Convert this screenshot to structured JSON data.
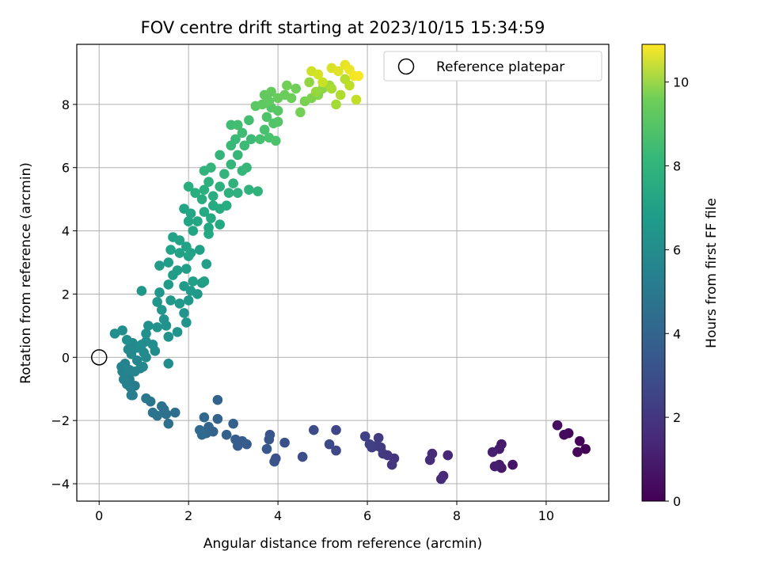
{
  "chart_data": {
    "type": "scatter",
    "title": "FOV centre drift starting at 2023/10/15 15:34:59",
    "xlabel": "Angular distance from reference (arcmin)",
    "ylabel": "Rotation from reference (arcmin)",
    "xlim": [
      -0.5,
      11.4
    ],
    "ylim": [
      -4.55,
      9.9
    ],
    "xticks": [
      0,
      2,
      4,
      6,
      8,
      10
    ],
    "yticks": [
      -4,
      -2,
      0,
      2,
      4,
      6,
      8
    ],
    "grid": true,
    "legend": {
      "position": "top-right",
      "entries": [
        "Reference platepar"
      ]
    },
    "reference_point": {
      "x": 0,
      "y": 0,
      "label": "Reference platepar"
    },
    "colorbar": {
      "label": "Hours from first FF file",
      "range": [
        0,
        10.9
      ],
      "ticks": [
        0,
        2,
        4,
        6,
        8,
        10
      ],
      "colormap": "viridis"
    },
    "points": [
      [
        10.88,
        -2.9,
        0.05
      ],
      [
        10.75,
        -2.65,
        0.1
      ],
      [
        10.7,
        -3.0,
        0.2
      ],
      [
        10.5,
        -2.4,
        0.25
      ],
      [
        10.4,
        -2.45,
        0.3
      ],
      [
        10.25,
        -2.15,
        0.4
      ],
      [
        9.25,
        -3.4,
        0.6
      ],
      [
        9.0,
        -3.5,
        0.7
      ],
      [
        8.95,
        -3.4,
        0.75
      ],
      [
        9.0,
        -2.75,
        0.8
      ],
      [
        8.95,
        -2.9,
        0.85
      ],
      [
        8.85,
        -3.45,
        0.9
      ],
      [
        8.8,
        -3.0,
        0.95
      ],
      [
        7.8,
        -3.1,
        1.2
      ],
      [
        7.7,
        -3.75,
        1.25
      ],
      [
        7.65,
        -3.85,
        1.3
      ],
      [
        7.45,
        -3.05,
        1.35
      ],
      [
        7.4,
        -3.25,
        1.4
      ],
      [
        6.6,
        -3.2,
        1.65
      ],
      [
        6.55,
        -3.4,
        1.7
      ],
      [
        6.45,
        -3.1,
        1.75
      ],
      [
        6.35,
        -3.05,
        1.8
      ],
      [
        6.3,
        -2.85,
        1.85
      ],
      [
        6.25,
        -2.55,
        1.9
      ],
      [
        6.2,
        -2.8,
        1.95
      ],
      [
        6.1,
        -2.85,
        2.0
      ],
      [
        6.05,
        -2.75,
        2.05
      ],
      [
        5.95,
        -2.5,
        2.1
      ],
      [
        5.3,
        -2.3,
        2.3
      ],
      [
        5.3,
        -2.95,
        2.35
      ],
      [
        5.15,
        -2.75,
        2.4
      ],
      [
        4.8,
        -2.3,
        2.5
      ],
      [
        4.55,
        -3.15,
        2.6
      ],
      [
        4.15,
        -2.7,
        2.7
      ],
      [
        3.95,
        -3.2,
        2.75
      ],
      [
        3.92,
        -3.3,
        2.8
      ],
      [
        3.82,
        -2.45,
        2.85
      ],
      [
        3.8,
        -2.6,
        2.9
      ],
      [
        3.75,
        -2.9,
        2.95
      ],
      [
        3.3,
        -2.75,
        3.1
      ],
      [
        3.2,
        -2.65,
        3.15
      ],
      [
        3.1,
        -2.8,
        3.2
      ],
      [
        3.05,
        -2.6,
        3.25
      ],
      [
        3.0,
        -2.1,
        3.3
      ],
      [
        2.85,
        -2.45,
        3.35
      ],
      [
        2.65,
        -1.35,
        3.4
      ],
      [
        2.65,
        -1.95,
        3.45
      ],
      [
        2.55,
        -2.35,
        3.5
      ],
      [
        2.45,
        -2.2,
        3.55
      ],
      [
        2.4,
        -2.4,
        3.6
      ],
      [
        2.35,
        -1.9,
        3.65
      ],
      [
        2.3,
        -2.45,
        3.7
      ],
      [
        2.25,
        -2.3,
        3.75
      ],
      [
        1.7,
        -1.75,
        3.9
      ],
      [
        1.55,
        -2.1,
        3.95
      ],
      [
        1.5,
        -1.8,
        4.0
      ],
      [
        1.45,
        -1.65,
        4.05
      ],
      [
        1.4,
        -1.55,
        4.1
      ],
      [
        1.3,
        -1.85,
        4.15
      ],
      [
        1.2,
        -1.75,
        4.2
      ],
      [
        1.15,
        -1.4,
        4.25
      ],
      [
        1.05,
        -1.3,
        4.3
      ],
      [
        0.8,
        -0.9,
        4.5
      ],
      [
        0.75,
        -1.2,
        4.55
      ],
      [
        0.7,
        -0.95,
        4.6
      ],
      [
        0.72,
        -1.2,
        4.62
      ],
      [
        0.68,
        -0.7,
        4.65
      ],
      [
        0.62,
        -0.85,
        4.7
      ],
      [
        0.6,
        -0.55,
        4.72
      ],
      [
        0.55,
        -0.7,
        4.75
      ],
      [
        0.52,
        -0.45,
        4.78
      ],
      [
        0.5,
        -0.3,
        4.8
      ],
      [
        0.58,
        -0.2,
        4.85
      ],
      [
        0.68,
        -0.4,
        4.88
      ],
      [
        0.8,
        -0.45,
        4.9
      ],
      [
        0.92,
        -0.35,
        4.95
      ],
      [
        0.98,
        -0.3,
        4.98
      ],
      [
        0.85,
        -0.1,
        5.0
      ],
      [
        0.72,
        0.1,
        5.05
      ],
      [
        0.65,
        0.25,
        5.1
      ],
      [
        0.75,
        0.45,
        5.12
      ],
      [
        0.85,
        0.3,
        5.15
      ],
      [
        1.0,
        0.15,
        5.18
      ],
      [
        1.05,
        0.0,
        5.2
      ],
      [
        1.25,
        0.2,
        5.25
      ],
      [
        1.55,
        -0.2,
        5.28
      ],
      [
        1.2,
        0.4,
        5.3
      ],
      [
        1.05,
        0.5,
        5.32
      ],
      [
        0.95,
        0.4,
        5.35
      ],
      [
        0.62,
        0.55,
        5.38
      ],
      [
        0.52,
        0.85,
        5.4
      ],
      [
        0.35,
        0.75,
        5.42
      ],
      [
        1.05,
        0.75,
        5.45
      ],
      [
        1.1,
        1.0,
        5.48
      ],
      [
        1.3,
        0.95,
        5.5
      ],
      [
        1.45,
        1.2,
        5.52
      ],
      [
        1.5,
        1.0,
        5.55
      ],
      [
        1.55,
        0.65,
        5.58
      ],
      [
        1.75,
        0.8,
        5.6
      ],
      [
        1.95,
        1.1,
        5.62
      ],
      [
        1.9,
        1.4,
        5.65
      ],
      [
        1.4,
        1.5,
        5.68
      ],
      [
        1.3,
        1.75,
        5.7
      ],
      [
        1.35,
        2.05,
        5.72
      ],
      [
        0.95,
        2.1,
        5.75
      ],
      [
        1.6,
        1.8,
        5.78
      ],
      [
        1.8,
        1.7,
        5.8
      ],
      [
        2.0,
        1.8,
        5.82
      ],
      [
        2.2,
        2.0,
        5.85
      ],
      [
        2.3,
        2.35,
        5.88
      ],
      [
        2.05,
        2.1,
        5.9
      ],
      [
        1.9,
        2.25,
        5.92
      ],
      [
        1.55,
        2.3,
        5.95
      ],
      [
        1.65,
        2.6,
        5.98
      ],
      [
        1.35,
        2.9,
        6.0
      ],
      [
        1.55,
        3.0,
        6.02
      ],
      [
        1.75,
        2.75,
        6.05
      ],
      [
        1.95,
        2.8,
        6.08
      ],
      [
        2.1,
        2.4,
        6.1
      ],
      [
        2.35,
        2.4,
        6.12
      ],
      [
        2.4,
        2.95,
        6.15
      ],
      [
        2.25,
        3.4,
        6.18
      ],
      [
        2.05,
        3.3,
        6.2
      ],
      [
        1.8,
        3.3,
        6.22
      ],
      [
        1.6,
        3.4,
        6.25
      ],
      [
        1.65,
        3.8,
        6.28
      ],
      [
        1.8,
        3.7,
        6.3
      ],
      [
        1.95,
        3.5,
        6.32
      ],
      [
        2.0,
        3.2,
        6.35
      ],
      [
        2.1,
        4.0,
        6.38
      ],
      [
        2.0,
        4.3,
        6.4
      ],
      [
        1.9,
        4.7,
        6.42
      ],
      [
        2.05,
        4.55,
        6.45
      ],
      [
        2.2,
        4.3,
        6.48
      ],
      [
        2.45,
        4.1,
        6.5
      ],
      [
        2.45,
        3.9,
        6.55
      ],
      [
        2.5,
        4.4,
        6.58
      ],
      [
        2.7,
        4.2,
        6.6
      ],
      [
        2.35,
        4.6,
        6.62
      ],
      [
        2.55,
        4.8,
        6.65
      ],
      [
        2.7,
        4.7,
        6.7
      ],
      [
        2.85,
        4.8,
        6.72
      ],
      [
        2.3,
        5.0,
        6.75
      ],
      [
        2.55,
        5.1,
        6.78
      ],
      [
        2.0,
        5.4,
        6.8
      ],
      [
        2.15,
        5.2,
        6.82
      ],
      [
        2.35,
        5.3,
        6.85
      ],
      [
        2.45,
        5.55,
        6.88
      ],
      [
        2.7,
        5.4,
        6.9
      ],
      [
        2.9,
        5.2,
        6.92
      ],
      [
        3.1,
        5.2,
        6.95
      ],
      [
        3.0,
        5.5,
        6.98
      ],
      [
        3.35,
        5.3,
        7.0
      ],
      [
        3.55,
        5.25,
        7.02
      ],
      [
        2.35,
        5.9,
        7.05
      ],
      [
        2.5,
        6.0,
        7.08
      ],
      [
        2.7,
        6.4,
        7.1
      ],
      [
        2.8,
        5.8,
        7.12
      ],
      [
        2.95,
        6.1,
        7.15
      ],
      [
        3.2,
        5.9,
        7.18
      ],
      [
        3.3,
        6.0,
        7.2
      ],
      [
        3.1,
        6.4,
        7.22
      ],
      [
        2.95,
        6.7,
        7.25
      ],
      [
        3.05,
        6.9,
        7.28
      ],
      [
        3.25,
        6.7,
        7.35
      ],
      [
        3.4,
        6.9,
        7.4
      ],
      [
        3.2,
        7.1,
        7.45
      ],
      [
        2.95,
        7.35,
        7.5
      ],
      [
        3.1,
        7.35,
        7.55
      ],
      [
        3.35,
        7.5,
        7.6
      ],
      [
        3.6,
        6.9,
        7.65
      ],
      [
        3.7,
        7.2,
        7.7
      ],
      [
        3.8,
        6.95,
        7.75
      ],
      [
        3.95,
        6.85,
        7.8
      ],
      [
        3.75,
        7.6,
        7.85
      ],
      [
        3.9,
        7.4,
        7.9
      ],
      [
        4.0,
        7.45,
        7.95
      ],
      [
        3.85,
        7.9,
        8.0
      ],
      [
        4.0,
        7.8,
        8.05
      ],
      [
        3.5,
        7.95,
        8.1
      ],
      [
        3.65,
        8.0,
        8.15
      ],
      [
        3.8,
        8.1,
        8.2
      ],
      [
        3.7,
        8.3,
        8.25
      ],
      [
        3.85,
        8.4,
        8.3
      ],
      [
        4.0,
        8.2,
        8.35
      ],
      [
        4.15,
        8.3,
        8.4
      ],
      [
        4.3,
        8.2,
        8.45
      ],
      [
        4.4,
        8.5,
        8.5
      ],
      [
        4.2,
        8.6,
        8.55
      ],
      [
        4.5,
        7.75,
        8.6
      ],
      [
        4.6,
        8.1,
        8.7
      ],
      [
        4.75,
        8.2,
        8.8
      ],
      [
        4.9,
        8.3,
        8.9
      ],
      [
        5.0,
        8.5,
        9.0
      ],
      [
        4.7,
        8.7,
        9.1
      ],
      [
        4.85,
        8.4,
        9.2
      ],
      [
        5.15,
        8.6,
        9.3
      ],
      [
        5.3,
        8.0,
        9.4
      ],
      [
        5.2,
        8.5,
        9.5
      ],
      [
        5.4,
        8.3,
        9.6
      ],
      [
        5.5,
        8.8,
        9.7
      ],
      [
        5.6,
        8.6,
        9.8
      ],
      [
        5.75,
        8.15,
        9.9
      ],
      [
        5.0,
        8.7,
        10.0
      ],
      [
        4.75,
        9.05,
        10.1
      ],
      [
        4.9,
        8.95,
        10.2
      ],
      [
        5.2,
        9.15,
        10.3
      ],
      [
        5.35,
        9.05,
        10.4
      ],
      [
        5.5,
        9.25,
        10.5
      ],
      [
        5.6,
        9.1,
        10.6
      ],
      [
        5.7,
        8.9,
        10.7
      ],
      [
        5.8,
        8.9,
        10.8
      ]
    ]
  }
}
